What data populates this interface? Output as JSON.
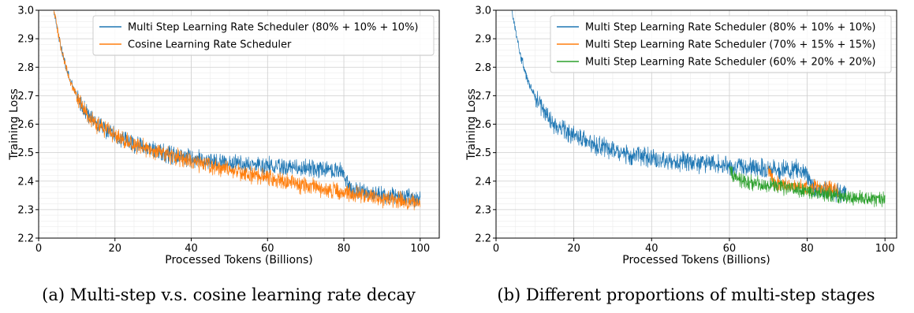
{
  "chart_data": [
    {
      "type": "line",
      "caption": "(a)  Multi-step v.s. cosine learning rate decay",
      "xlabel": "Processed Tokens (Billions)",
      "ylabel": "Training Loss",
      "xlim": [
        0,
        105
      ],
      "ylim": [
        2.2,
        3.0
      ],
      "xticks": [
        0,
        20,
        40,
        60,
        80,
        100
      ],
      "yticks": [
        2.2,
        2.3,
        2.4,
        2.5,
        2.6,
        2.7,
        2.8,
        2.9,
        3.0
      ],
      "grid": true,
      "legend": "top-right",
      "series": [
        {
          "name": "Multi Step Learning Rate Scheduler (80% + 10% + 10%)",
          "color": "#1f77b4",
          "noise": 0.045,
          "x": [
            4,
            5,
            6,
            8,
            10,
            12,
            15,
            20,
            25,
            30,
            35,
            40,
            45,
            50,
            55,
            60,
            65,
            70,
            75,
            79,
            80,
            81,
            82,
            85,
            90,
            95,
            100
          ],
          "y": [
            3.0,
            2.93,
            2.86,
            2.76,
            2.7,
            2.65,
            2.6,
            2.56,
            2.53,
            2.51,
            2.49,
            2.48,
            2.47,
            2.465,
            2.46,
            2.455,
            2.45,
            2.445,
            2.44,
            2.44,
            2.42,
            2.39,
            2.375,
            2.365,
            2.355,
            2.345,
            2.335
          ]
        },
        {
          "name": "Cosine Learning Rate Scheduler",
          "color": "#ff7f0e",
          "noise": 0.045,
          "x": [
            4,
            5,
            6,
            8,
            10,
            12,
            15,
            20,
            25,
            30,
            35,
            40,
            45,
            50,
            55,
            60,
            65,
            70,
            75,
            80,
            85,
            90,
            95,
            100
          ],
          "y": [
            3.0,
            2.93,
            2.86,
            2.76,
            2.7,
            2.65,
            2.6,
            2.56,
            2.53,
            2.51,
            2.49,
            2.47,
            2.455,
            2.44,
            2.425,
            2.41,
            2.395,
            2.385,
            2.37,
            2.36,
            2.35,
            2.34,
            2.33,
            2.325
          ]
        }
      ]
    },
    {
      "type": "line",
      "caption": "(b)  Different proportions of multi-step stages",
      "xlabel": "Processed Tokens (Billions)",
      "ylabel": "Training Loss",
      "xlim": [
        0,
        103
      ],
      "ylim": [
        2.2,
        3.0
      ],
      "xticks": [
        0,
        20,
        40,
        60,
        80,
        100
      ],
      "yticks": [
        2.2,
        2.3,
        2.4,
        2.5,
        2.6,
        2.7,
        2.8,
        2.9,
        3.0
      ],
      "grid": true,
      "legend": "top-right",
      "series": [
        {
          "name": "Multi Step Learning Rate Scheduler (80% + 10% + 10%)",
          "color": "#1f77b4",
          "noise": 0.05,
          "x": [
            4,
            5,
            6,
            8,
            10,
            12,
            15,
            20,
            25,
            30,
            35,
            40,
            45,
            50,
            55,
            60,
            65,
            70,
            75,
            79,
            80,
            81,
            82,
            85,
            90
          ],
          "y": [
            3.0,
            2.93,
            2.86,
            2.76,
            2.7,
            2.65,
            2.6,
            2.56,
            2.53,
            2.51,
            2.49,
            2.48,
            2.47,
            2.465,
            2.46,
            2.455,
            2.45,
            2.445,
            2.44,
            2.44,
            2.42,
            2.39,
            2.375,
            2.365,
            2.355
          ]
        },
        {
          "name": "Multi Step Learning Rate Scheduler (70% + 15% + 15%)",
          "color": "#ff7f0e",
          "noise": 0.04,
          "x": [
            70,
            71,
            72,
            75,
            80,
            85,
            88
          ],
          "y": [
            2.445,
            2.41,
            2.395,
            2.385,
            2.38,
            2.375,
            2.37
          ]
        },
        {
          "name": "Multi Step Learning Rate Scheduler (60% + 20% + 20%)",
          "color": "#2ca02c",
          "noise": 0.04,
          "x": [
            60,
            61,
            62,
            65,
            70,
            75,
            80,
            85,
            90,
            95,
            100
          ],
          "y": [
            2.455,
            2.42,
            2.41,
            2.395,
            2.385,
            2.375,
            2.365,
            2.355,
            2.345,
            2.34,
            2.335
          ]
        }
      ]
    }
  ]
}
